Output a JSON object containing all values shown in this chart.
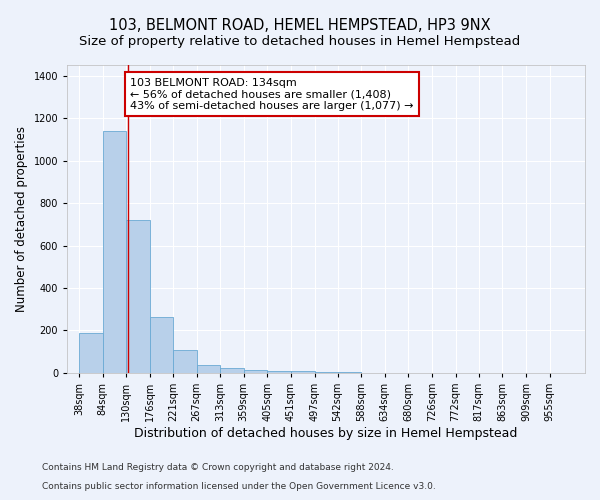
{
  "title": "103, BELMONT ROAD, HEMEL HEMPSTEAD, HP3 9NX",
  "subtitle": "Size of property relative to detached houses in Hemel Hempstead",
  "xlabel": "Distribution of detached houses by size in Hemel Hempstead",
  "ylabel": "Number of detached properties",
  "footnote1": "Contains HM Land Registry data © Crown copyright and database right 2024.",
  "footnote2": "Contains public sector information licensed under the Open Government Licence v3.0.",
  "bin_labels": [
    "38sqm",
    "84sqm",
    "130sqm",
    "176sqm",
    "221sqm",
    "267sqm",
    "313sqm",
    "359sqm",
    "405sqm",
    "451sqm",
    "497sqm",
    "542sqm",
    "588sqm",
    "634sqm",
    "680sqm",
    "726sqm",
    "772sqm",
    "817sqm",
    "863sqm",
    "909sqm",
    "955sqm"
  ],
  "bin_edges": [
    38,
    84,
    130,
    176,
    221,
    267,
    313,
    359,
    405,
    451,
    497,
    542,
    588,
    634,
    680,
    726,
    772,
    817,
    863,
    909,
    955
  ],
  "bar_heights": [
    190,
    1140,
    720,
    265,
    110,
    35,
    25,
    15,
    10,
    8,
    5,
    2,
    1,
    0,
    0,
    0,
    0,
    0,
    0,
    0
  ],
  "bar_color": "#b8d0ea",
  "bar_edge_color": "#6aaad4",
  "property_line_x": 134,
  "property_line_color": "#cc0000",
  "annotation_line1": "103 BELMONT ROAD: 134sqm",
  "annotation_line2": "← 56% of detached houses are smaller (1,408)",
  "annotation_line3": "43% of semi-detached houses are larger (1,077) →",
  "annotation_box_color": "#ffffff",
  "annotation_box_edge": "#cc0000",
  "ylim": [
    0,
    1450
  ],
  "yticks": [
    0,
    200,
    400,
    600,
    800,
    1000,
    1200,
    1400
  ],
  "background_color": "#edf2fb",
  "grid_color": "#ffffff",
  "title_fontsize": 10.5,
  "subtitle_fontsize": 9.5,
  "ylabel_fontsize": 8.5,
  "xlabel_fontsize": 9,
  "tick_fontsize": 7,
  "annotation_fontsize": 8,
  "footnote_fontsize": 6.5
}
